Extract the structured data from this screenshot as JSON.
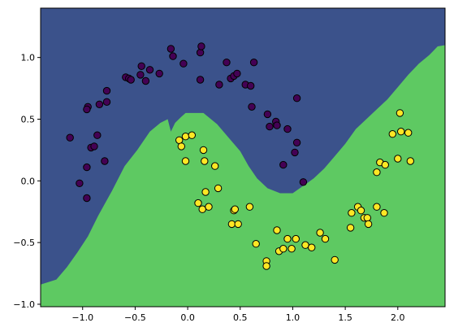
{
  "chart_data": {
    "type": "scatter",
    "title": "",
    "xlabel": "",
    "ylabel": "",
    "xlim": [
      -1.4,
      2.45
    ],
    "ylim": [
      -1.02,
      1.4
    ],
    "grid": false,
    "x_ticks": [
      -1.0,
      -0.5,
      0.0,
      0.5,
      1.0,
      1.5,
      2.0
    ],
    "x_tick_labels": [
      "−1.0",
      "−0.5",
      "0.0",
      "0.5",
      "1.0",
      "1.5",
      "2.0"
    ],
    "y_ticks": [
      -1.0,
      -0.5,
      0.0,
      0.5,
      1.0
    ],
    "y_tick_labels": [
      "−1.0",
      "−0.5",
      "0.0",
      "0.5",
      "1.0"
    ],
    "regions": {
      "class_0_color": "#3b528b",
      "class_1_color": "#5ec962",
      "boundary": [
        [
          -1.4,
          -0.84
        ],
        [
          -1.25,
          -0.8
        ],
        [
          -1.15,
          -0.7
        ],
        [
          -1.05,
          -0.58
        ],
        [
          -0.95,
          -0.45
        ],
        [
          -0.85,
          -0.28
        ],
        [
          -0.72,
          -0.08
        ],
        [
          -0.6,
          0.12
        ],
        [
          -0.48,
          0.25
        ],
        [
          -0.36,
          0.4
        ],
        [
          -0.26,
          0.47
        ],
        [
          -0.19,
          0.5
        ],
        [
          -0.16,
          0.4
        ],
        [
          -0.12,
          0.47
        ],
        [
          -0.06,
          0.52
        ],
        [
          -0.02,
          0.55
        ],
        [
          0.15,
          0.55
        ],
        [
          0.28,
          0.46
        ],
        [
          0.4,
          0.34
        ],
        [
          0.5,
          0.24
        ],
        [
          0.58,
          0.12
        ],
        [
          0.66,
          0.02
        ],
        [
          0.76,
          -0.06
        ],
        [
          0.88,
          -0.1
        ],
        [
          1.0,
          -0.1
        ],
        [
          1.1,
          -0.04
        ],
        [
          1.2,
          0.02
        ],
        [
          1.3,
          0.1
        ],
        [
          1.4,
          0.2
        ],
        [
          1.5,
          0.3
        ],
        [
          1.6,
          0.42
        ],
        [
          1.7,
          0.5
        ],
        [
          1.8,
          0.58
        ],
        [
          1.9,
          0.66
        ],
        [
          2.0,
          0.76
        ],
        [
          2.1,
          0.86
        ],
        [
          2.2,
          0.95
        ],
        [
          2.3,
          1.02
        ],
        [
          2.38,
          1.09
        ],
        [
          2.45,
          1.1
        ]
      ]
    },
    "series": [
      {
        "color": "#440154",
        "points": [
          [
            -1.12,
            0.35
          ],
          [
            -1.03,
            -0.02
          ],
          [
            -0.96,
            -0.14
          ],
          [
            -0.96,
            0.11
          ],
          [
            -0.95,
            0.6
          ],
          [
            -0.96,
            0.58
          ],
          [
            -0.92,
            0.27
          ],
          [
            -0.89,
            0.28
          ],
          [
            -0.86,
            0.37
          ],
          [
            -0.84,
            0.62
          ],
          [
            -0.79,
            0.16
          ],
          [
            -0.77,
            0.64
          ],
          [
            -0.77,
            0.73
          ],
          [
            -0.59,
            0.84
          ],
          [
            -0.56,
            0.83
          ],
          [
            -0.54,
            0.82
          ],
          [
            -0.45,
            0.86
          ],
          [
            -0.44,
            0.93
          ],
          [
            -0.4,
            0.81
          ],
          [
            -0.36,
            0.9
          ],
          [
            -0.27,
            0.87
          ],
          [
            -0.16,
            1.07
          ],
          [
            -0.14,
            1.01
          ],
          [
            -0.04,
            0.95
          ],
          [
            0.12,
            1.04
          ],
          [
            0.12,
            0.82
          ],
          [
            0.13,
            1.09
          ],
          [
            0.3,
            0.78
          ],
          [
            0.37,
            0.96
          ],
          [
            0.41,
            0.83
          ],
          [
            0.44,
            0.85
          ],
          [
            0.47,
            0.87
          ],
          [
            0.55,
            0.78
          ],
          [
            0.6,
            0.77
          ],
          [
            0.61,
            0.6
          ],
          [
            0.63,
            0.96
          ],
          [
            0.76,
            0.54
          ],
          [
            0.78,
            0.44
          ],
          [
            0.84,
            0.48
          ],
          [
            0.85,
            0.45
          ],
          [
            0.91,
            0.13
          ],
          [
            0.95,
            0.42
          ],
          [
            1.02,
            0.23
          ],
          [
            1.04,
            0.67
          ],
          [
            1.04,
            0.31
          ],
          [
            1.1,
            -0.01
          ]
        ]
      },
      {
        "color": "#fde725",
        "points": [
          [
            -0.08,
            0.33
          ],
          [
            -0.06,
            0.28
          ],
          [
            -0.02,
            0.36
          ],
          [
            -0.02,
            0.16
          ],
          [
            0.04,
            0.37
          ],
          [
            0.1,
            -0.18
          ],
          [
            0.14,
            -0.23
          ],
          [
            0.15,
            0.25
          ],
          [
            0.16,
            0.16
          ],
          [
            0.17,
            -0.09
          ],
          [
            0.2,
            -0.21
          ],
          [
            0.26,
            0.12
          ],
          [
            0.29,
            -0.06
          ],
          [
            0.42,
            -0.35
          ],
          [
            0.44,
            -0.24
          ],
          [
            0.45,
            -0.23
          ],
          [
            0.48,
            -0.35
          ],
          [
            0.59,
            -0.21
          ],
          [
            0.65,
            -0.51
          ],
          [
            0.75,
            -0.65
          ],
          [
            0.75,
            -0.69
          ],
          [
            0.85,
            -0.4
          ],
          [
            0.87,
            -0.57
          ],
          [
            0.91,
            -0.55
          ],
          [
            0.95,
            -0.47
          ],
          [
            0.99,
            -0.55
          ],
          [
            1.03,
            -0.47
          ],
          [
            1.12,
            -0.52
          ],
          [
            1.18,
            -0.54
          ],
          [
            1.26,
            -0.42
          ],
          [
            1.31,
            -0.47
          ],
          [
            1.4,
            -0.64
          ],
          [
            1.55,
            -0.38
          ],
          [
            1.56,
            -0.26
          ],
          [
            1.62,
            -0.21
          ],
          [
            1.65,
            -0.24
          ],
          [
            1.68,
            -0.3
          ],
          [
            1.71,
            -0.3
          ],
          [
            1.72,
            -0.35
          ],
          [
            1.8,
            0.07
          ],
          [
            1.8,
            -0.21
          ],
          [
            1.83,
            0.15
          ],
          [
            1.87,
            -0.26
          ],
          [
            1.88,
            0.13
          ],
          [
            1.95,
            0.38
          ],
          [
            2.0,
            0.18
          ],
          [
            2.02,
            0.55
          ],
          [
            2.03,
            0.4
          ],
          [
            2.1,
            0.39
          ],
          [
            2.12,
            0.16
          ]
        ]
      }
    ]
  }
}
